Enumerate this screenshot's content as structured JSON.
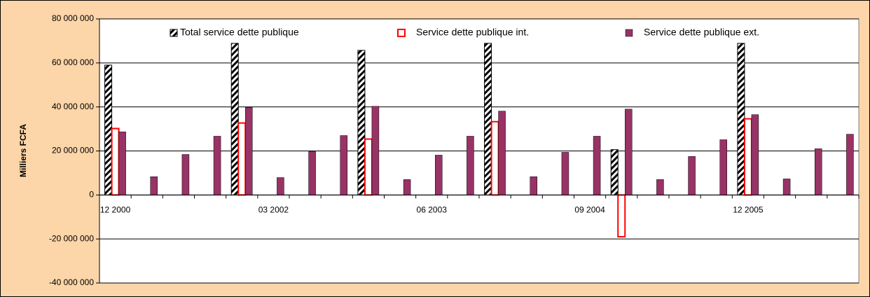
{
  "chart_data": {
    "type": "bar",
    "y_axis_label": "Milliers FCFA",
    "categories": [
      "12 2000",
      null,
      null,
      null,
      null,
      "03 2002",
      null,
      null,
      null,
      null,
      "06 2003",
      null,
      null,
      null,
      null,
      "09 2004",
      null,
      null,
      null,
      null,
      "12 2005",
      null,
      null,
      null
    ],
    "series": [
      {
        "name": "Total service dette publique",
        "color": "#000000",
        "style": "hatched",
        "values": [
          59000000,
          null,
          null,
          null,
          68900000,
          null,
          null,
          null,
          65700000,
          null,
          null,
          null,
          68900000,
          null,
          null,
          null,
          20600000,
          null,
          null,
          null,
          68900000,
          null,
          null,
          null
        ]
      },
      {
        "name": "Service dette publique int.",
        "color": "#ff0000",
        "style": "outline",
        "values": [
          30200000,
          null,
          null,
          null,
          32700000,
          null,
          null,
          null,
          25400000,
          null,
          null,
          null,
          33300000,
          null,
          null,
          null,
          -19000000,
          null,
          null,
          null,
          34600000,
          null,
          null,
          null
        ]
      },
      {
        "name": "Service dette publique ext.",
        "color": "#993366",
        "style": "solid",
        "values": [
          28700000,
          8300000,
          18400000,
          26700000,
          39800000,
          7900000,
          19700000,
          27000000,
          40300000,
          7000000,
          18100000,
          26700000,
          38100000,
          8300000,
          19400000,
          26700000,
          39000000,
          7000000,
          17500000,
          25100000,
          36500000,
          7300000,
          21000000,
          27600000
        ]
      }
    ],
    "ylim": [
      -40000000,
      80000000
    ],
    "yticks": [
      {
        "value": -40000000,
        "label": "-40 000 000"
      },
      {
        "value": -20000000,
        "label": "-20 000 000"
      },
      0,
      {
        "value": 20000000,
        "label": "20 000 000"
      },
      {
        "value": 40000000,
        "label": "40 000 000"
      },
      {
        "value": 60000000,
        "label": "60 000 000"
      },
      {
        "value": 80000000,
        "label": "80 000 000"
      }
    ],
    "grid": true,
    "background": "#fcd5a8",
    "legend": "top"
  }
}
